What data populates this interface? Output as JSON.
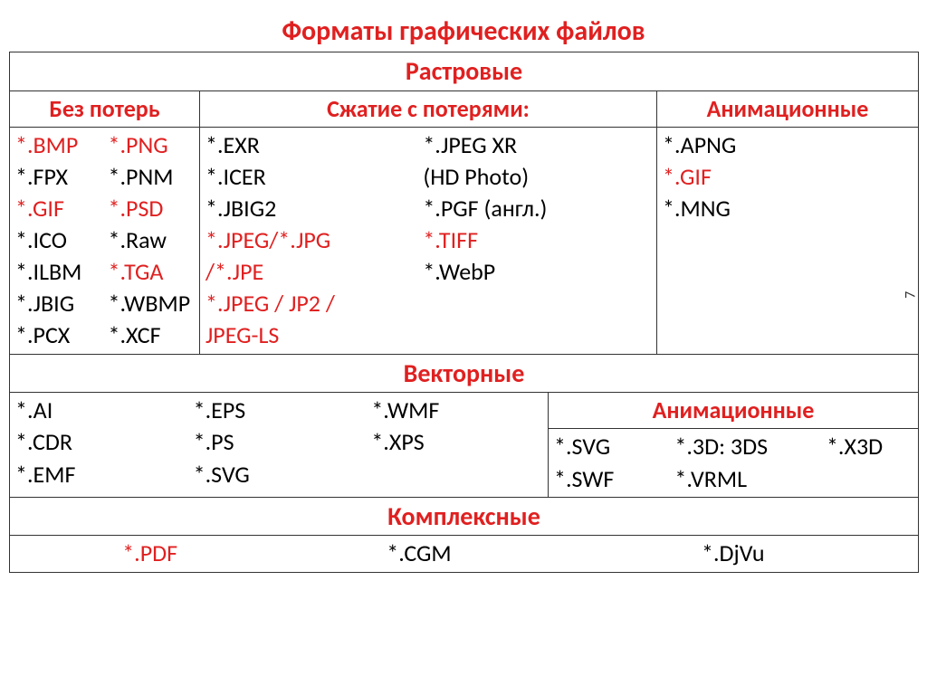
{
  "title": "Форматы графических файлов",
  "raster": {
    "header": "Растровые",
    "lossless": {
      "header": "Без потерь",
      "col1": [
        {
          "t": "*.BMP",
          "c": "red"
        },
        {
          "t": "*.FPX",
          "c": "blk"
        },
        {
          "t": "*.GIF",
          "c": "red"
        },
        {
          "t": "*.ICO",
          "c": "blk"
        },
        {
          "t": "*.ILBM",
          "c": "blk"
        },
        {
          "t": "*.JBIG",
          "c": "blk"
        },
        {
          "t": "*.PCX",
          "c": "blk"
        }
      ],
      "col2": [
        {
          "t": "*.PNG",
          "c": "red"
        },
        {
          "t": "*.PNM",
          "c": "blk"
        },
        {
          "t": "*.PSD",
          "c": "red"
        },
        {
          "t": "*.Raw",
          "c": "blk"
        },
        {
          "t": "*.TGA",
          "c": "red"
        },
        {
          "t": "*.WBMP",
          "c": "blk"
        },
        {
          "t": "*.XCF",
          "c": "blk"
        }
      ]
    },
    "lossy": {
      "header": "Сжатие с потерями:",
      "col1": [
        {
          "t": "*.EXR",
          "c": "blk"
        },
        {
          "t": " *.ICER",
          "c": "blk"
        },
        {
          "t": "*.JBIG2",
          "c": "blk"
        },
        {
          "t": "*.JPEG/*.JPG",
          "c": "red"
        },
        {
          "t": "/*.JPE",
          "c": "red"
        },
        {
          "t": "*.JPEG / JP2 /",
          "c": "red"
        },
        {
          "t": "JPEG-LS",
          "c": "red"
        }
      ],
      "col2": [
        {
          "t": "*.JPEG XR",
          "c": "blk"
        },
        {
          "t": "(HD Photo)",
          "c": "blk"
        },
        {
          "t": "*.PGF (англ.)",
          "c": "blk"
        },
        {
          "t": "*.TIFF",
          "c": "red"
        },
        {
          "t": "*.WebP",
          "c": "blk"
        }
      ]
    },
    "anim": {
      "header": "Анимационные",
      "items": [
        {
          "t": "*.APNG",
          "c": "blk"
        },
        {
          "t": "*.GIF",
          "c": "red"
        },
        {
          "t": "*.MNG",
          "c": "blk"
        }
      ]
    }
  },
  "vector": {
    "header": "Векторные",
    "main": {
      "col1": [
        {
          "t": "*.AI",
          "c": "blk"
        },
        {
          "t": "*.CDR",
          "c": "blk"
        },
        {
          "t": "*.EMF",
          "c": "blk"
        }
      ],
      "col2": [
        {
          "t": "*.EPS",
          "c": "blk"
        },
        {
          "t": "*.PS",
          "c": "blk"
        },
        {
          "t": "*.SVG",
          "c": "blk"
        }
      ],
      "col3": [
        {
          "t": "*.WMF",
          "c": "blk"
        },
        {
          "t": "*.XPS",
          "c": "blk"
        }
      ]
    },
    "anim": {
      "header": "Анимационные",
      "col1": [
        {
          "t": "*.SVG",
          "c": "blk"
        },
        {
          "t": "*.SWF",
          "c": "blk"
        }
      ],
      "col2": [
        {
          "t": "*.3D: 3DS",
          "c": "blk"
        },
        {
          "t": "*.VRML",
          "c": "blk"
        }
      ],
      "col3": [
        {
          "t": "*.X3D",
          "c": "blk"
        }
      ]
    }
  },
  "complex": {
    "header": "Комплексные",
    "items": [
      {
        "t": "*.PDF",
        "c": "red"
      },
      {
        "t": "*.CGM",
        "c": "blk"
      },
      {
        "t": "*.DjVu",
        "c": "blk"
      }
    ]
  },
  "page_mark": "7"
}
